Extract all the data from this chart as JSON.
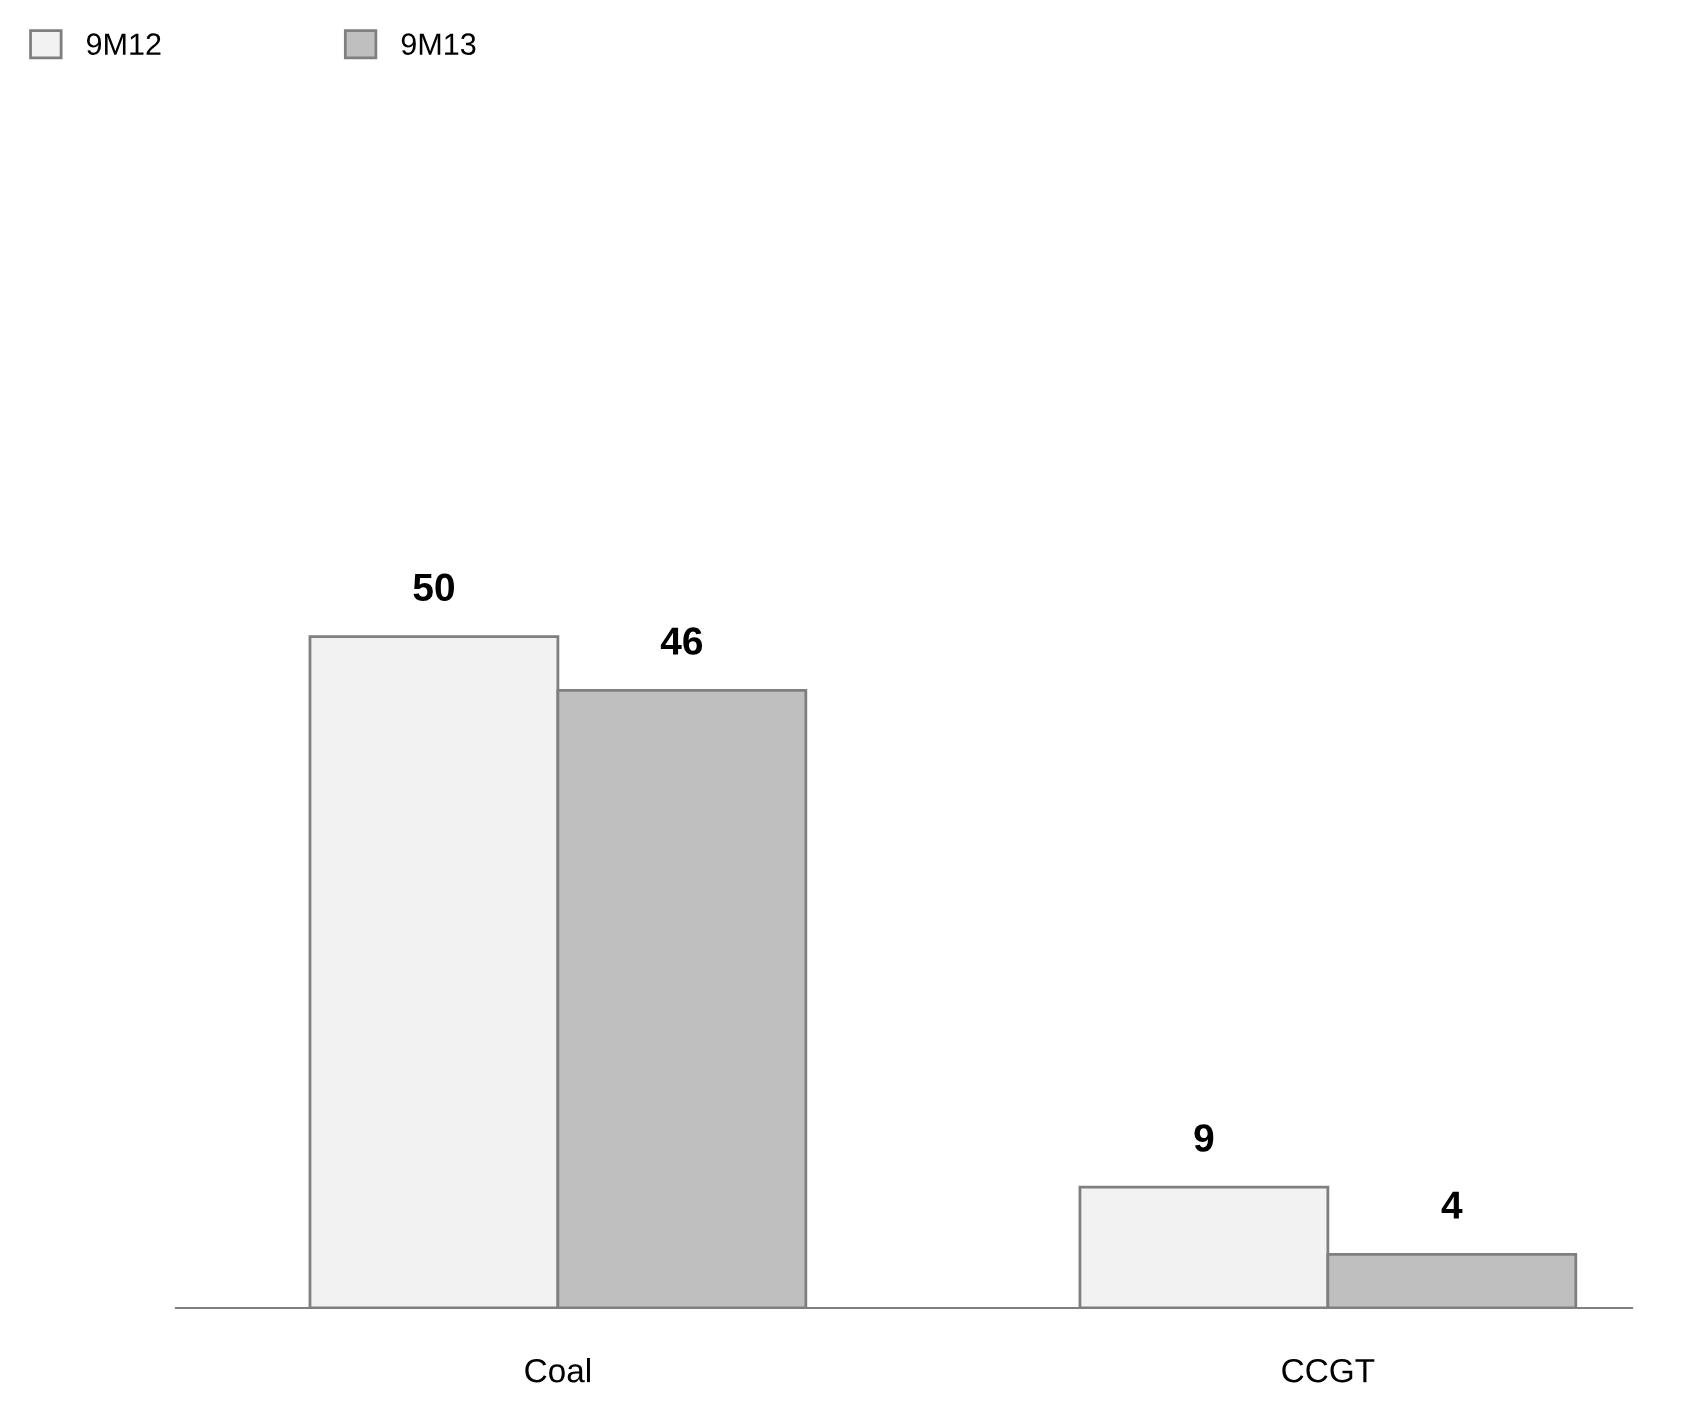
{
  "chart_data": {
    "type": "bar",
    "categories": [
      "Coal",
      "CCGT"
    ],
    "series": [
      {
        "name": "9M12",
        "color": "#f2f2f2",
        "values": [
          50,
          9
        ]
      },
      {
        "name": "9M13",
        "color": "#bfbfbf",
        "values": [
          46,
          4
        ]
      }
    ],
    "data_labels": true,
    "legend": "top left",
    "grid": false
  }
}
